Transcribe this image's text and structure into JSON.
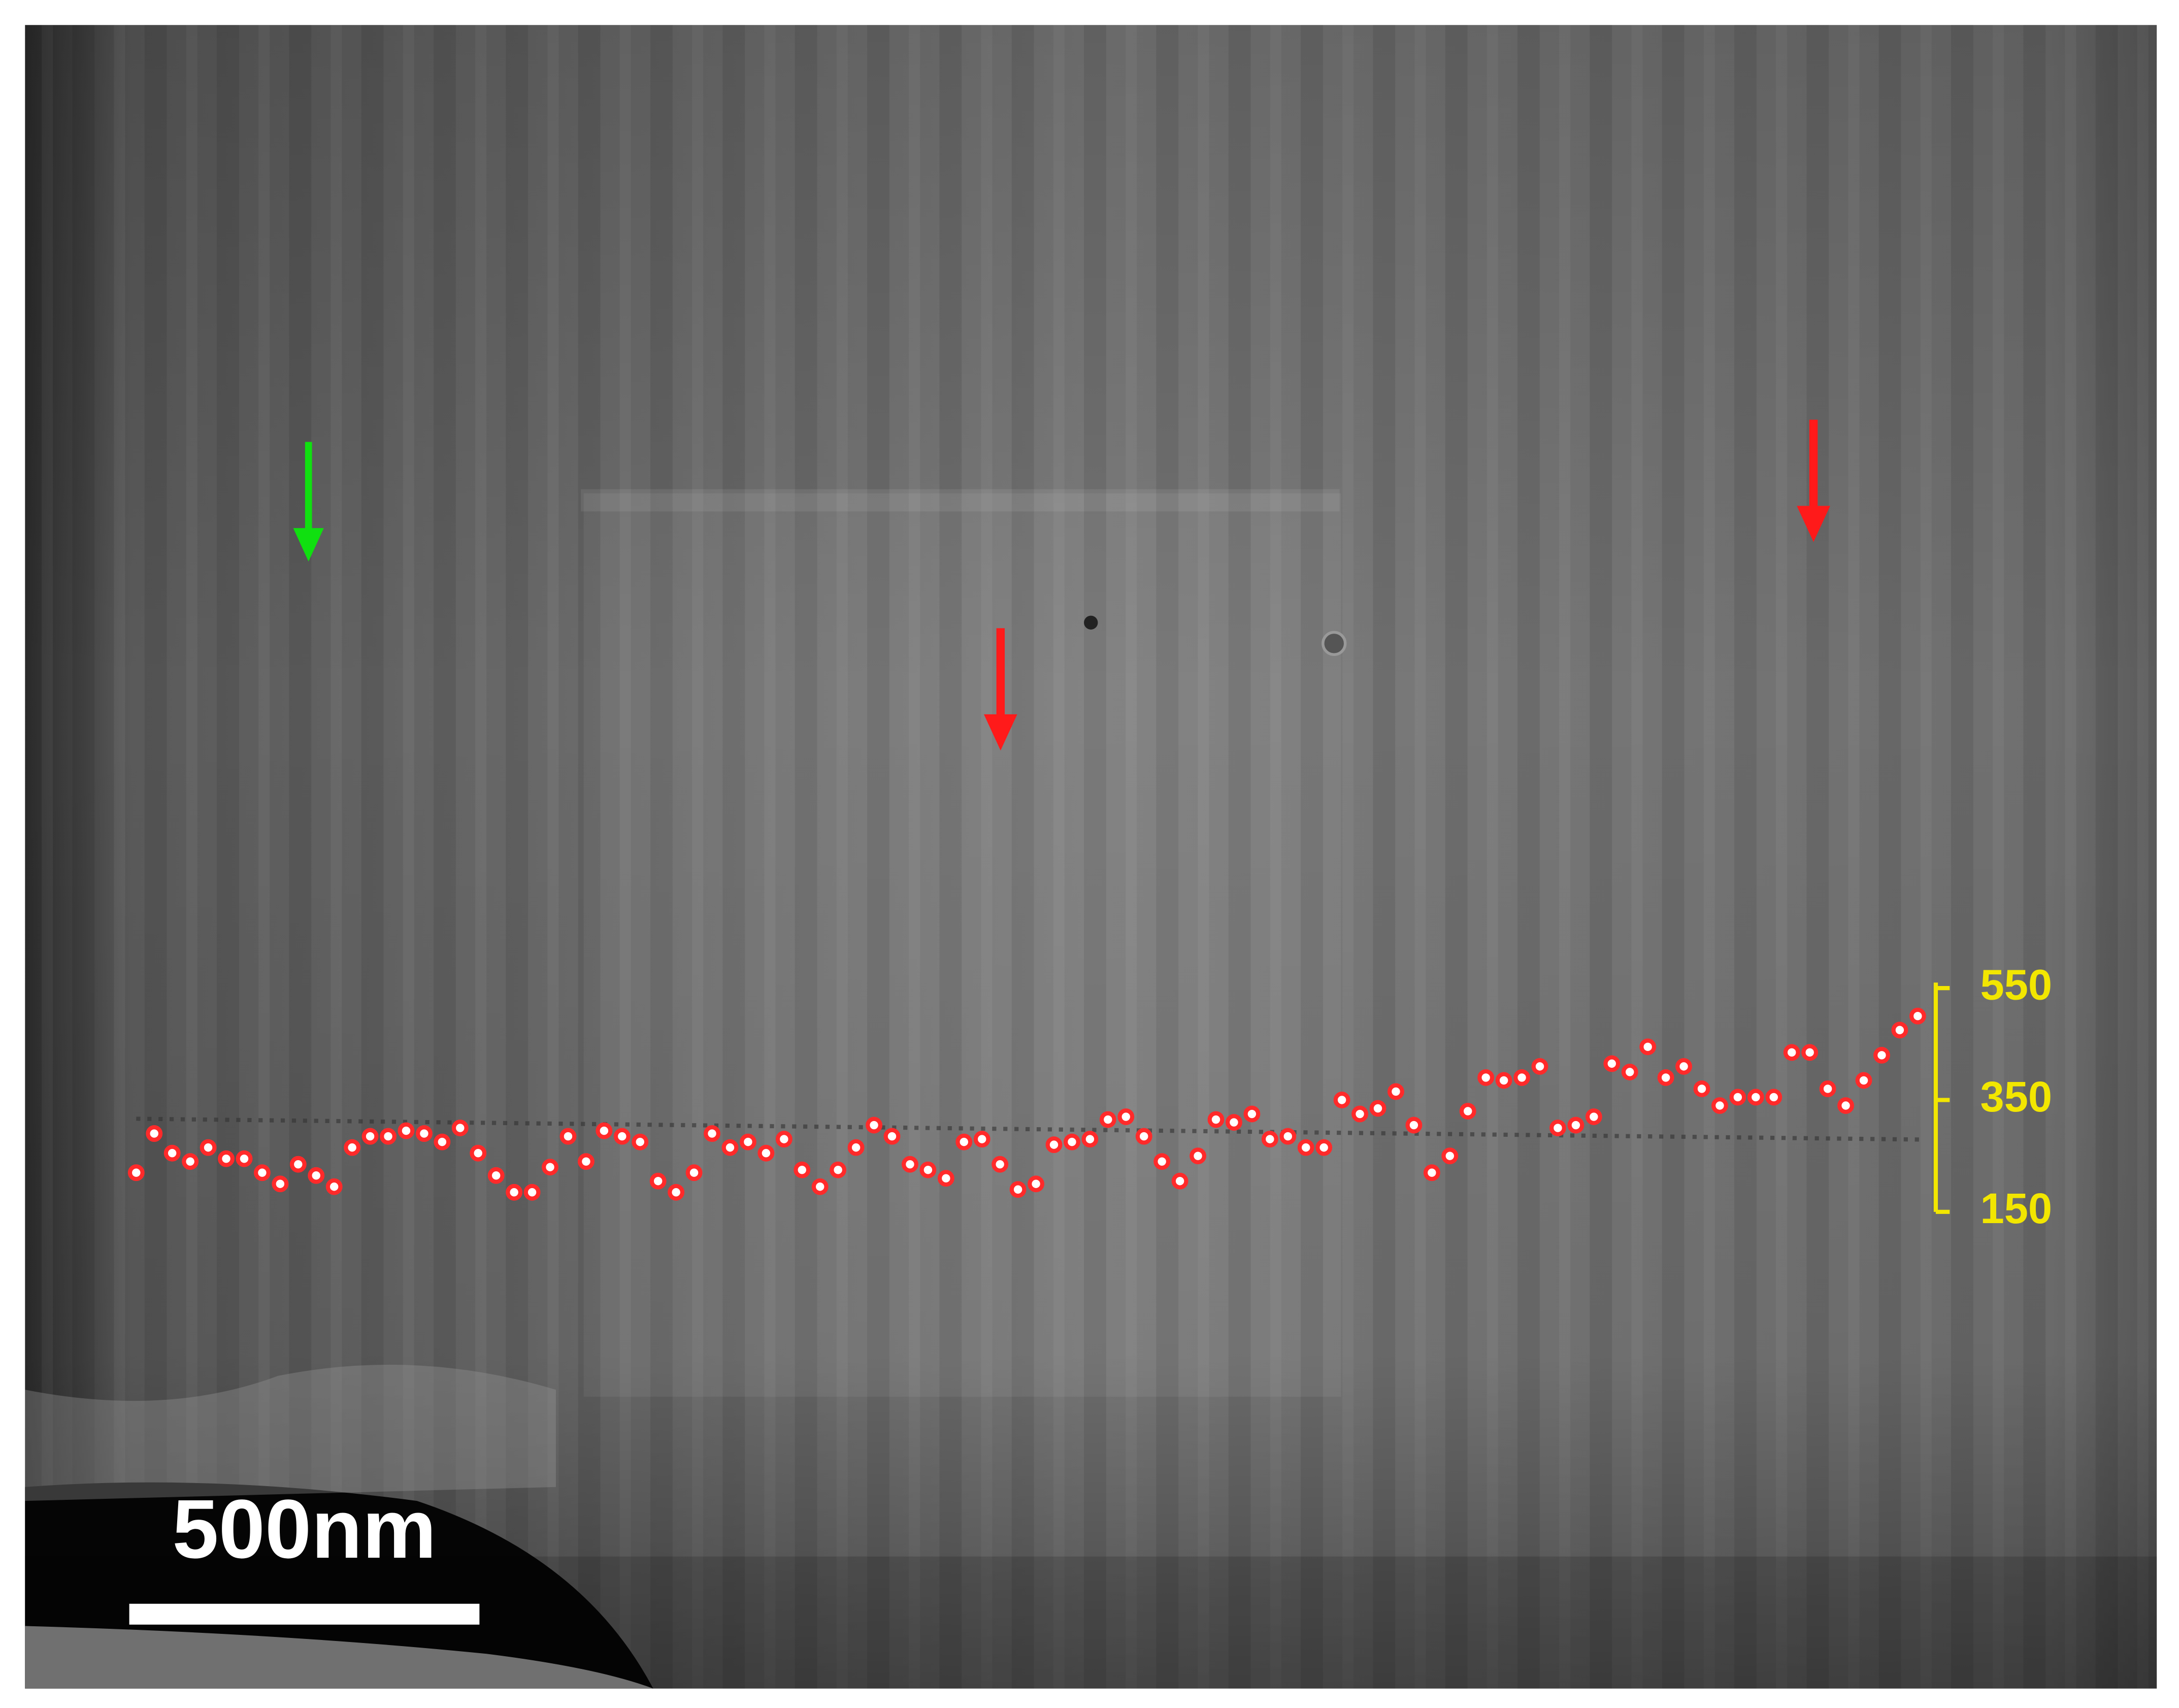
{
  "chart_data": {
    "type": "scatter",
    "series": [
      {
        "color": "#ff2a2a",
        "values": [
          220,
          290,
          255,
          240,
          265,
          245,
          245,
          220,
          200,
          235,
          215,
          195,
          265,
          285,
          285,
          295,
          290,
          275,
          300,
          255,
          215,
          185,
          185,
          230,
          285,
          240,
          295,
          285,
          275,
          205,
          185,
          220,
          290,
          265,
          275,
          255,
          280,
          225,
          195,
          225,
          265,
          305,
          285,
          235,
          225,
          210,
          275,
          280,
          235,
          190,
          200,
          270,
          275,
          280,
          315,
          320,
          285,
          240,
          205,
          250,
          315,
          310,
          325,
          280,
          285,
          265,
          265,
          350,
          325,
          335,
          365,
          305,
          220,
          250,
          330,
          390,
          385,
          390,
          410,
          300,
          305,
          320,
          415,
          400,
          445,
          390,
          410,
          370,
          340,
          355,
          355,
          355,
          435,
          435,
          370,
          340,
          385,
          430,
          475,
          500
        ]
      }
    ],
    "ylim": [
      150,
      550
    ],
    "yticks": [
      150,
      350,
      550
    ],
    "axis_color": "#f2e600"
  },
  "image": {
    "scale_bar": "500nm"
  }
}
